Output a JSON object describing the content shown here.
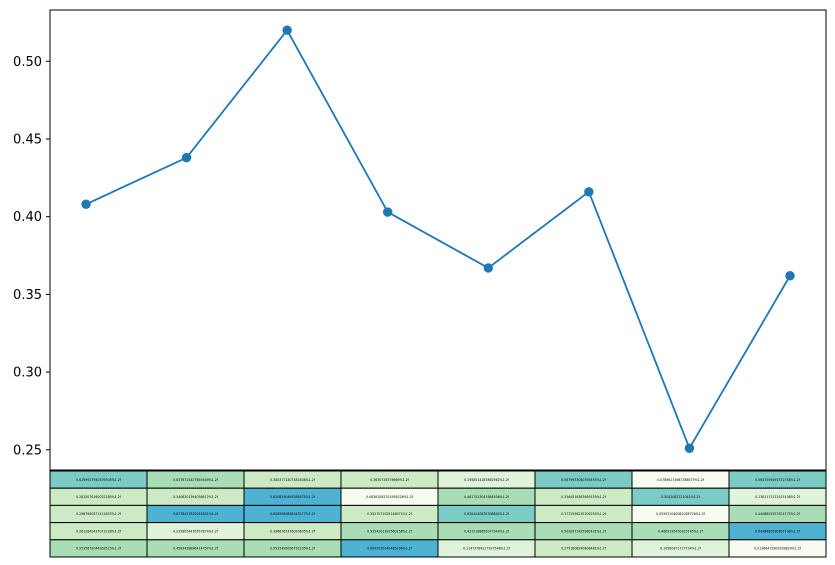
{
  "chart_data": {
    "type": "line",
    "title": "",
    "xlabel": "",
    "ylabel": "",
    "x": [
      0,
      1,
      2,
      3,
      4,
      5,
      6,
      7
    ],
    "ylim": [
      0.237,
      0.533
    ],
    "yticks": [
      0.25,
      0.3,
      0.35,
      0.4,
      0.45,
      0.5
    ],
    "ytick_labels": [
      "0.25",
      "0.30",
      "0.35",
      "0.40",
      "0.45",
      "0.50"
    ],
    "series": [
      {
        "values": [
          0.408,
          0.438,
          0.52,
          0.403,
          0.367,
          0.416,
          0.251,
          0.362
        ]
      }
    ],
    "colors": {
      "line": "#1f77b4",
      "marker": "#1f77b4"
    },
    "grid": false,
    "table": {
      "cmap": [
        "#f7fcf0",
        "#e0f3db",
        "#ccebc5",
        "#a8ddb5",
        "#7bccc4",
        "#4eb3d3",
        "#2b8cbe"
      ],
      "rows": [
        {
          "cells": [
            "0.6299927940539305%1.2f",
            "0.6376724427691649%1.2f",
            "0.3803771407481808%1.2f",
            "0.3630726376669%1.2f",
            "0.1958514185862962%1.2f",
            "0.5679953040359455%1.2f",
            "0.07896174987386575%1.2f",
            "0.5647059491572748%1.2f"
          ],
          "intensity": [
            0.68,
            0.55,
            0.4,
            0.4,
            0.2,
            0.62,
            0.08,
            0.62
          ]
        },
        {
          "cells": [
            "0.2815076160032285%1.2f",
            "0.3406301394038612%1.2f",
            "0.6208290495265975%1.2f",
            "0.08361082151959226%1.2f",
            "0.4617523047664506%1.2f",
            "0.3564518363659155%1.2f",
            "0.5042082221041%1.2f",
            "0.1381171122415108%1.2f"
          ],
          "intensity": [
            0.28,
            0.38,
            0.75,
            0.08,
            0.5,
            0.38,
            0.6,
            0.14
          ]
        },
        {
          "cells": [
            "0.2987960371412655%1.2f",
            "0.6778457820051801%1.2f",
            "0.6089989898543277%1.2f",
            "0.3527571025248971%1.2f",
            "0.6304440635308894%1.2f",
            "0.3772596235205255%1.2f",
            "0.055931040081038726%1.2f",
            "0.4408802557674775%1.2f"
          ],
          "intensity": [
            0.3,
            0.85,
            0.75,
            0.38,
            0.72,
            0.4,
            0.06,
            0.5
          ]
        },
        {
          "cells": [
            "0.2612842437071228%1.2f",
            "0.2358054476557874%1.2f",
            "0.3966762376020605%1.2f",
            "0.5254201391560258%1.2f",
            "0.4272188655077344%1.2f",
            "0.5020971425980431%1.2f",
            "0.4663195470315745%1.2f",
            "0.6498680590897736%1.2f"
          ],
          "intensity": [
            0.26,
            0.24,
            0.4,
            0.55,
            0.45,
            0.53,
            0.48,
            0.8
          ]
        },
        {
          "cells": [
            "0.5535672044163515%1.2f",
            "0.4583428896414757%1.2f",
            "0.5525495056751235%1.2f",
            "0.6902050149485296%1.2f",
            "0.11473784217927548%1.2f",
            "0.2751808930808481%1.2f",
            "0.10580471717734%1.2f",
            "0.01366472909339829%1.2f"
          ],
          "intensity": [
            0.58,
            0.48,
            0.58,
            0.88,
            0.11,
            0.28,
            0.1,
            0.01
          ]
        }
      ]
    }
  }
}
